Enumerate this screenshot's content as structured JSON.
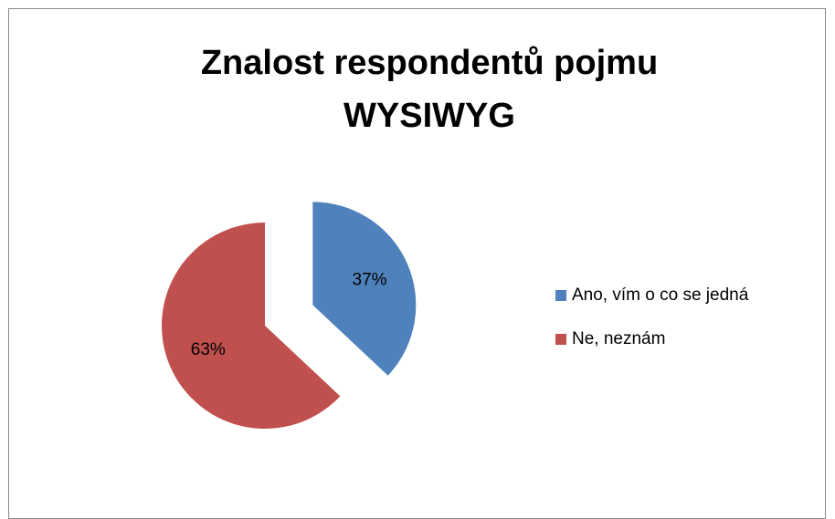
{
  "chart_data": {
    "type": "pie",
    "title": "Znalost respondentů pojmu WYSIWYG",
    "categories": [
      "Ano, vím o co se jedná",
      "Ne, neznám"
    ],
    "values": [
      37,
      63
    ],
    "value_labels": [
      "37%",
      "63%"
    ],
    "colors": [
      "#4f81bd",
      "#c0504d"
    ],
    "legend": "right"
  }
}
